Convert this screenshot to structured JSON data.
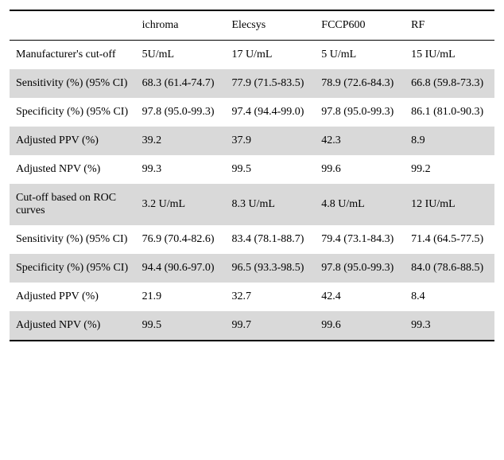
{
  "columns": [
    "",
    "ichroma",
    "Elecsys",
    "FCCP600",
    "RF"
  ],
  "rows": [
    {
      "shade": false,
      "label": "Manufacturer's cut-off",
      "c1": "5U/mL",
      "c2": "17 U/mL",
      "c3": "5 U/mL",
      "c4": "15 IU/mL"
    },
    {
      "shade": true,
      "label": "Sensitivity (%) (95% CI)",
      "c1": "68.3 (61.4-74.7)",
      "c2": "77.9 (71.5-83.5)",
      "c3": "78.9 (72.6-84.3)",
      "c4": "66.8 (59.8-73.3)"
    },
    {
      "shade": false,
      "label": "Specificity (%) (95% CI)",
      "c1": "97.8 (95.0-99.3)",
      "c2": "97.4 (94.4-99.0)",
      "c3": "97.8 (95.0-99.3)",
      "c4": "86.1 (81.0-90.3)"
    },
    {
      "shade": true,
      "label": "Adjusted PPV (%)",
      "c1": "39.2",
      "c2": "37.9",
      "c3": "42.3",
      "c4": "8.9"
    },
    {
      "shade": false,
      "label": "Adjusted NPV (%)",
      "c1": "99.3",
      "c2": "99.5",
      "c3": "99.6",
      "c4": "99.2"
    },
    {
      "shade": true,
      "label": "Cut-off based on ROC curves",
      "c1": "3.2 U/mL",
      "c2": "8.3 U/mL",
      "c3": "4.8 U/mL",
      "c4": "12 IU/mL"
    },
    {
      "shade": false,
      "label": "Sensitivity (%) (95% CI)",
      "c1": "76.9 (70.4-82.6)",
      "c2": "83.4 (78.1-88.7)",
      "c3": "79.4 (73.1-84.3)",
      "c4": "71.4 (64.5-77.5)"
    },
    {
      "shade": true,
      "label": "Specificity (%) (95% CI)",
      "c1": "94.4 (90.6-97.0)",
      "c2": "96.5 (93.3-98.5)",
      "c3": "97.8 (95.0-99.3)",
      "c4": "84.0 (78.6-88.5)"
    },
    {
      "shade": false,
      "label": "Adjusted PPV (%)",
      "c1": "21.9",
      "c2": "32.7",
      "c3": "42.4",
      "c4": "8.4"
    },
    {
      "shade": true,
      "label": "Adjusted NPV (%)",
      "c1": "99.5",
      "c2": "99.7",
      "c3": "99.6",
      "c4": "99.3"
    }
  ]
}
